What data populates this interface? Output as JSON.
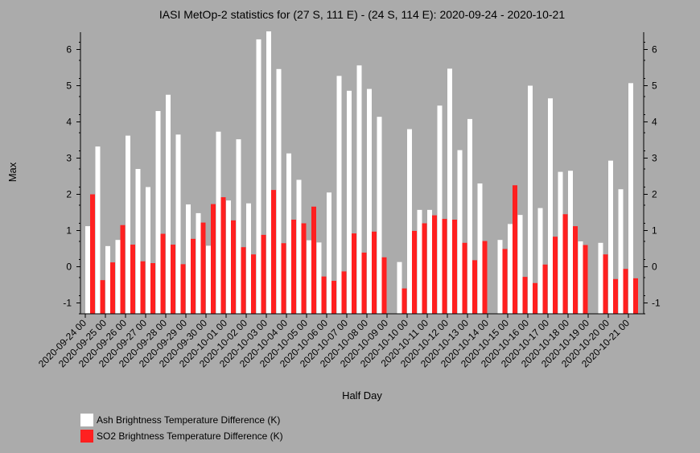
{
  "chart_data": {
    "type": "bar",
    "title": "IASI MetOp-2 statistics for (27 S, 111 E) - (24 S, 114 E): 2020-09-24 - 2020-10-21",
    "xlabel": "Half Day",
    "ylabel": "Max",
    "ylim": [
      -1.3,
      6.5
    ],
    "yticks": [
      -1,
      0,
      1,
      2,
      3,
      4,
      5,
      6
    ],
    "x_tick_labels": [
      "2020-09-24 00",
      "2020-09-25 00",
      "2020-09-26 00",
      "2020-09-27 00",
      "2020-09-28 00",
      "2020-09-29 00",
      "2020-09-30 00",
      "2020-10-01 00",
      "2020-10-02 00",
      "2020-10-03 00",
      "2020-10-04 00",
      "2020-10-05 00",
      "2020-10-06 00",
      "2020-10-07 00",
      "2020-10-08 00",
      "2020-10-09 00",
      "2020-10-10 00",
      "2020-10-11 00",
      "2020-10-12 00",
      "2020-10-13 00",
      "2020-10-14 00",
      "2020-10-15 00",
      "2020-10-16 00",
      "2020-10-17 00",
      "2020-10-18 00",
      "2020-10-19 00",
      "2020-10-20 00",
      "2020-10-21 00"
    ],
    "series": [
      {
        "name": "Ash Brightness Temperature Difference (K)",
        "color": "#ffffff",
        "values": [
          1.12,
          3.32,
          0.57,
          0.74,
          3.62,
          2.7,
          2.2,
          4.3,
          4.75,
          3.65,
          1.72,
          1.48,
          0.58,
          3.73,
          1.83,
          3.52,
          1.75,
          6.28,
          6.5,
          5.46,
          3.13,
          2.4,
          0.73,
          0.67,
          2.05,
          5.27,
          4.86,
          5.56,
          4.91,
          4.14,
          null,
          0.13,
          3.8,
          1.57,
          1.57,
          4.45,
          5.47,
          3.22,
          4.08,
          2.3,
          null,
          0.74,
          1.18,
          1.43,
          5.0,
          1.62,
          4.65,
          2.62,
          2.65,
          0.7,
          null,
          0.66,
          2.93,
          2.14,
          5.07
        ]
      },
      {
        "name": "SO2 Brightness Temperature Difference (K)",
        "color": "#ff2020",
        "values": [
          2.0,
          -0.37,
          0.12,
          1.15,
          0.61,
          0.15,
          0.1,
          0.91,
          0.61,
          0.07,
          0.77,
          1.22,
          1.73,
          1.92,
          1.28,
          0.54,
          0.34,
          0.88,
          2.12,
          0.65,
          1.3,
          1.2,
          1.66,
          -0.27,
          -0.39,
          -0.13,
          0.92,
          0.39,
          0.97,
          0.26,
          null,
          -0.6,
          0.99,
          1.2,
          1.42,
          1.32,
          1.3,
          0.66,
          0.18,
          0.71,
          null,
          0.49,
          2.25,
          -0.28,
          -0.45,
          0.06,
          0.83,
          1.45,
          1.12,
          0.6,
          null,
          0.34,
          -0.34,
          -0.06,
          -0.32
        ]
      }
    ],
    "grid": false,
    "legend_position": "bottom-left"
  }
}
